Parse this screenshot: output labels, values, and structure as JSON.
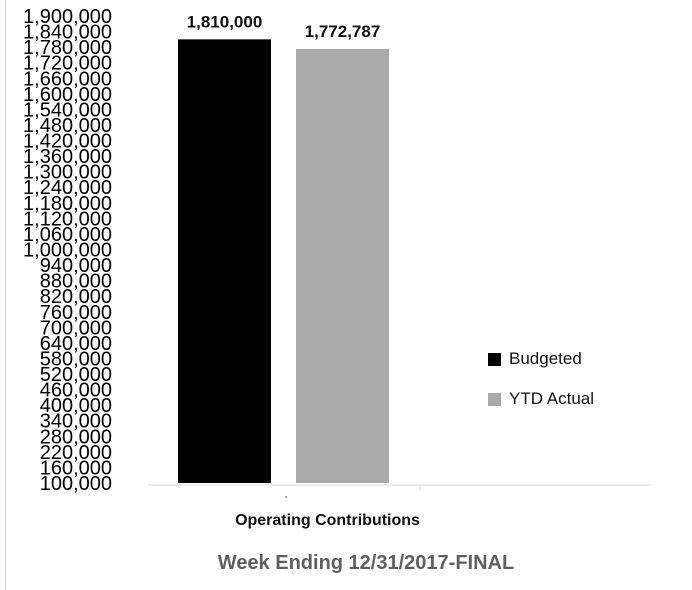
{
  "chart_data": {
    "type": "bar",
    "categories": [
      "Operating Contributions"
    ],
    "series": [
      {
        "name": "Budgeted",
        "values": [
          1810000
        ],
        "color": "#000000",
        "label": "1,810,000"
      },
      {
        "name": "YTD Actual",
        "values": [
          1772787
        ],
        "color": "#aaaaaa",
        "label": "1,772,787"
      }
    ],
    "ylim": [
      100000,
      1900000
    ],
    "y_ticks": [
      100000,
      160000,
      220000,
      280000,
      340000,
      400000,
      460000,
      520000,
      580000,
      640000,
      700000,
      760000,
      820000,
      880000,
      940000,
      1000000,
      1060000,
      1120000,
      1180000,
      1240000,
      1300000,
      1360000,
      1420000,
      1480000,
      1540000,
      1600000,
      1660000,
      1720000,
      1780000,
      1840000,
      1900000
    ],
    "y_tick_labels": [
      "100,000",
      "160,000",
      "220,000",
      "280,000",
      "340,000",
      "400,000",
      "460,000",
      "520,000",
      "580,000",
      "640,000",
      "700,000",
      "760,000",
      "820,000",
      "880,000",
      "940,000",
      "1,000,000",
      "1,060,000",
      "1,120,000",
      "1,180,000",
      "1,240,000",
      "1,300,000",
      "1,360,000",
      "1,420,000",
      "1,480,000",
      "1,540,000",
      "1,600,000",
      "1,660,000",
      "1,720,000",
      "1,780,000",
      "1,840,000",
      "1,900,000"
    ],
    "xlabel": "Operating Contributions",
    "title": "Week Ending 12/31/2017-FINAL",
    "grid": false,
    "legend": "right"
  }
}
